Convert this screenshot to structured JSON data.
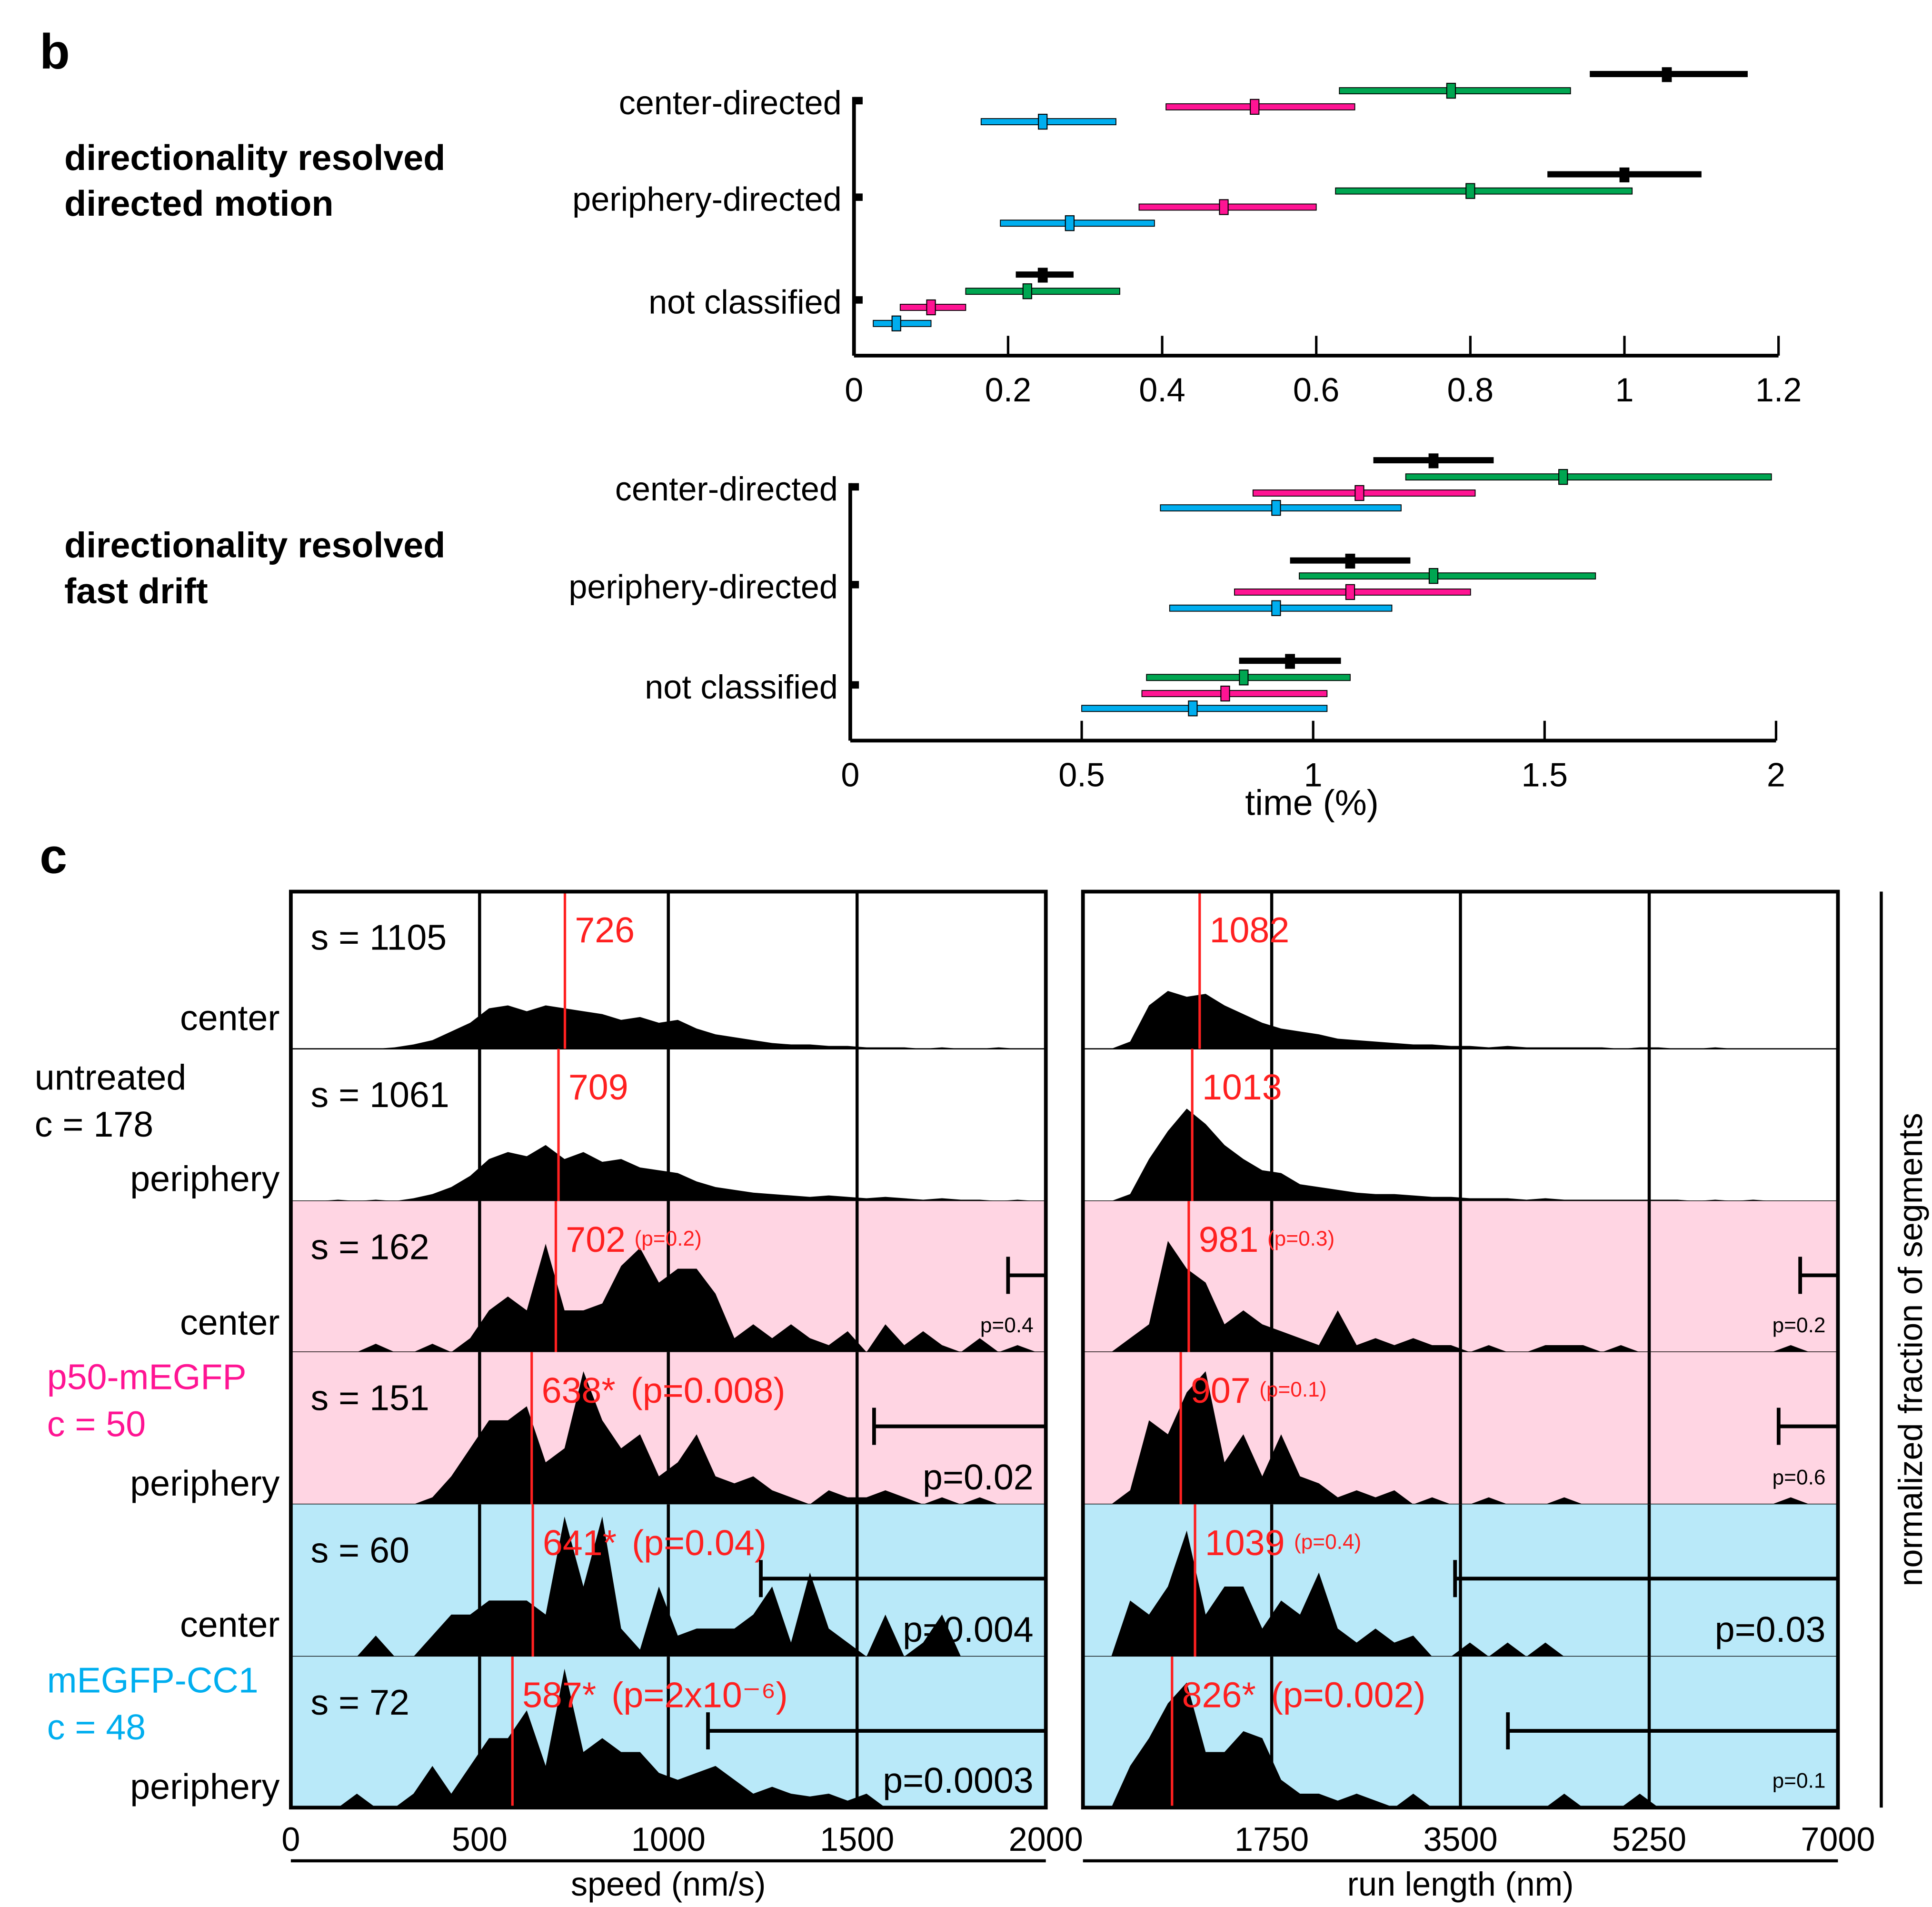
{
  "colors": {
    "untreated": "#000000",
    "p50": "#ff1493",
    "cc1": "#00aeef",
    "green": "#00a651",
    "red": "#ff2020",
    "pink_bg": "#ffd5e3",
    "cyan_bg": "#b9e9f9"
  },
  "panel_b": {
    "letter": "b",
    "group_names": [
      "untreated",
      "p50-mEGFP",
      "mEGFP-CC1 (green)",
      "mEGFP-CC1"
    ],
    "chart_data": [
      {
        "type": "scatter",
        "title": [
          "directionality resolved",
          "directed motion"
        ],
        "xlabel": "",
        "xlim": [
          0,
          1.2
        ],
        "xticks": [
          "0",
          "0.2",
          "0.4",
          "0.6",
          "0.8",
          "1",
          "1.2"
        ],
        "xtick_values": [
          0,
          0.2,
          0.4,
          0.6,
          0.8,
          1,
          1.2
        ],
        "categories": [
          "center-directed",
          "periphery-directed",
          "not classified"
        ],
        "series_colors": [
          "black",
          "green",
          "magenta",
          "blue"
        ],
        "points": [
          [
            [
              1.055,
              0.955,
              1.16
            ],
            [
              0.775,
              0.63,
              0.93
            ],
            [
              0.52,
              0.405,
              0.65
            ],
            [
              0.245,
              0.165,
              0.34
            ]
          ],
          [
            [
              1.0,
              0.9,
              1.1
            ],
            [
              0.8,
              0.625,
              1.01
            ],
            [
              0.48,
              0.37,
              0.6
            ],
            [
              0.28,
              0.19,
              0.39
            ]
          ],
          [
            [
              0.245,
              0.21,
              0.285
            ],
            [
              0.225,
              0.145,
              0.345
            ],
            [
              0.1,
              0.06,
              0.145
            ],
            [
              0.055,
              0.025,
              0.1
            ]
          ]
        ]
      },
      {
        "type": "scatter",
        "title": [
          "directionality resolved",
          "fast drift"
        ],
        "xlabel": "time (%)",
        "xlim": [
          0,
          2
        ],
        "xticks": [
          "0",
          "0.5",
          "1",
          "1.5",
          "2"
        ],
        "xtick_values": [
          0,
          0.5,
          1,
          1.5,
          2
        ],
        "categories": [
          "center-directed",
          "periphery-directed",
          "not classified"
        ],
        "series_colors": [
          "black",
          "green",
          "magenta",
          "blue"
        ],
        "points": [
          [
            [
              1.26,
              1.13,
              1.39
            ],
            [
              1.54,
              1.2,
              1.99
            ],
            [
              1.1,
              0.87,
              1.35
            ],
            [
              0.92,
              0.67,
              1.19
            ]
          ],
          [
            [
              1.08,
              0.95,
              1.21
            ],
            [
              1.26,
              0.97,
              1.61
            ],
            [
              1.08,
              0.83,
              1.34
            ],
            [
              0.92,
              0.69,
              1.17
            ]
          ],
          [
            [
              0.95,
              0.84,
              1.06
            ],
            [
              0.85,
              0.64,
              1.08
            ],
            [
              0.81,
              0.63,
              1.03
            ],
            [
              0.74,
              0.5,
              1.03
            ]
          ]
        ]
      }
    ]
  },
  "panel_c": {
    "letter": "c",
    "ylabel": "normalized fraction of segments",
    "groups": [
      {
        "name": "untreated",
        "count": "c = 178",
        "color": "untreated"
      },
      {
        "name": "p50-mEGFP",
        "count": "c = 50",
        "color": "p50"
      },
      {
        "name": "mEGFP-CC1",
        "count": "c = 48",
        "color": "cc1"
      }
    ],
    "row_labels": [
      "center",
      "periphery",
      "center",
      "periphery",
      "center",
      "periphery"
    ],
    "chart_data": [
      {
        "type": "area",
        "xlabel": "speed (nm/s)",
        "xlim": [
          0,
          2000
        ],
        "xticks": [
          "0",
          "500",
          "1000",
          "1500",
          "2000"
        ],
        "xtick_values": [
          0,
          500,
          1000,
          1500,
          2000
        ],
        "bin_width": 50,
        "rows": [
          {
            "s": "s = 1105",
            "median": 726,
            "median_label": "726",
            "p_label": "",
            "bracket_start": null,
            "bracket_p": "",
            "hist": [
              0,
              0,
              0,
              0,
              0,
              0.01,
              0.03,
              0.06,
              0.12,
              0.18,
              0.28,
              0.3,
              0.26,
              0.3,
              0.28,
              0.26,
              0.24,
              0.2,
              0.22,
              0.18,
              0.2,
              0.14,
              0.1,
              0.08,
              0.06,
              0.04,
              0.03,
              0.03,
              0.02,
              0.02,
              0.01,
              0.01,
              0.01,
              0,
              0.01,
              0,
              0,
              0.01,
              0,
              0
            ]
          },
          {
            "s": "s = 1061",
            "median": 709,
            "median_label": "709",
            "p_label": "",
            "bracket_start": null,
            "bracket_p": "",
            "hist": [
              0,
              0,
              0.01,
              0,
              0.01,
              0,
              0.02,
              0.05,
              0.1,
              0.18,
              0.3,
              0.35,
              0.32,
              0.4,
              0.3,
              0.35,
              0.28,
              0.3,
              0.24,
              0.22,
              0.2,
              0.14,
              0.1,
              0.08,
              0.06,
              0.05,
              0.04,
              0.03,
              0.04,
              0.03,
              0.02,
              0.03,
              0.02,
              0.01,
              0.02,
              0.01,
              0.01,
              0,
              0.01,
              0
            ]
          },
          {
            "s": "s = 162",
            "median": 702,
            "median_label": "702",
            "p_label": "(p=0.2)",
            "bracket_start": 1900,
            "bracket_p": "p=0.4",
            "hist": [
              0,
              0,
              0,
              0,
              0.06,
              0,
              0,
              0.06,
              0,
              0.1,
              0.3,
              0.4,
              0.3,
              0.78,
              0.3,
              0.3,
              0.35,
              0.62,
              0.75,
              0.5,
              0.6,
              0.6,
              0.42,
              0.1,
              0.2,
              0.1,
              0.2,
              0.1,
              0.05,
              0.15,
              0,
              0.2,
              0.05,
              0.15,
              0.05,
              0,
              0.1,
              0,
              0.05,
              0
            ]
          },
          {
            "s": "s = 151",
            "median": 638,
            "median_label": "638*",
            "p_label": "(p=0.008)",
            "bracket_start": 1545,
            "bracket_p": "p=0.02",
            "hist": [
              0,
              0,
              0,
              0,
              0,
              0,
              0,
              0.05,
              0.2,
              0.4,
              0.6,
              0.6,
              0.7,
              0.3,
              0.4,
              0.95,
              0.6,
              0.4,
              0.5,
              0.2,
              0.3,
              0.5,
              0.2,
              0.15,
              0.2,
              0.1,
              0.05,
              0,
              0.1,
              0.05,
              0.05,
              0.1,
              0.05,
              0,
              0.05,
              0,
              0.05,
              0,
              0,
              0
            ]
          },
          {
            "s": "s = 60",
            "median": 641,
            "median_label": "641*",
            "p_label": "(p=0.04)",
            "bracket_start": 1245,
            "bracket_p": "p=0.004",
            "hist": [
              0,
              0,
              0,
              0,
              0.15,
              0,
              0,
              0.15,
              0.3,
              0.3,
              0.4,
              0.4,
              0.4,
              0.3,
              1.0,
              0.5,
              1.0,
              0.2,
              0.05,
              0.5,
              0.15,
              0.2,
              0.2,
              0.2,
              0.3,
              0.5,
              0.1,
              0.6,
              0.2,
              0.1,
              0,
              0.3,
              0,
              0.1,
              0.3,
              0,
              0,
              0,
              0,
              0
            ]
          },
          {
            "s": "s = 72",
            "median": 587,
            "median_label": "587*",
            "p_label": "(p=2x10⁻⁶)",
            "bracket_start": 1105,
            "bracket_p": "p=0.0003",
            "hist": [
              0,
              0,
              0,
              0.1,
              0,
              0,
              0.1,
              0.3,
              0.1,
              0.3,
              0.5,
              0.5,
              0.7,
              0.3,
              1.0,
              0.4,
              0.5,
              0.4,
              0.4,
              0.25,
              0.2,
              0.25,
              0.3,
              0.2,
              0.1,
              0.15,
              0.1,
              0.08,
              0.1,
              0.05,
              0.1,
              0,
              0,
              0,
              0,
              0,
              0,
              0,
              0,
              0
            ]
          }
        ]
      },
      {
        "type": "area",
        "xlabel": "run length (nm)",
        "xlim": [
          0,
          7000
        ],
        "xticks": [
          "1750",
          "3500",
          "5250",
          "7000"
        ],
        "xtick_values": [
          1750,
          3500,
          5250,
          7000
        ],
        "bin_width": 175,
        "rows": [
          {
            "s": "",
            "median": 1082,
            "median_label": "1082",
            "p_label": "",
            "bracket_start": null,
            "bracket_p": "",
            "hist": [
              0,
              0,
              0.05,
              0.3,
              0.4,
              0.36,
              0.38,
              0.3,
              0.24,
              0.18,
              0.14,
              0.12,
              0.1,
              0.07,
              0.06,
              0.05,
              0.04,
              0.03,
              0.03,
              0.02,
              0.02,
              0.01,
              0.02,
              0.01,
              0.01,
              0.01,
              0.01,
              0.01,
              0,
              0.01,
              0.01,
              0,
              0,
              0.01,
              0,
              0,
              0,
              0,
              0,
              0
            ]
          },
          {
            "s": "",
            "median": 1013,
            "median_label": "1013",
            "p_label": "",
            "bracket_start": null,
            "bracket_p": "",
            "hist": [
              0,
              0,
              0.05,
              0.3,
              0.5,
              0.66,
              0.55,
              0.4,
              0.3,
              0.22,
              0.2,
              0.12,
              0.1,
              0.08,
              0.06,
              0.05,
              0.05,
              0.04,
              0.03,
              0.03,
              0.02,
              0.02,
              0.02,
              0.01,
              0.02,
              0.01,
              0.01,
              0.01,
              0.01,
              0.01,
              0.01,
              0.01,
              0,
              0.01,
              0,
              0.01,
              0,
              0,
              0,
              0
            ]
          },
          {
            "s": "",
            "median": 981,
            "median_label": "981",
            "p_label": "(p=0.3)",
            "bracket_start": 6650,
            "bracket_p": "p=0.2",
            "hist": [
              0,
              0,
              0.1,
              0.2,
              0.8,
              0.6,
              0.5,
              0.2,
              0.3,
              0.2,
              0.15,
              0.1,
              0.05,
              0.3,
              0.05,
              0.1,
              0.05,
              0.1,
              0.05,
              0.05,
              0,
              0.05,
              0,
              0,
              0.05,
              0.05,
              0.05,
              0,
              0.05,
              0,
              0,
              0,
              0,
              0,
              0,
              0,
              0,
              0.05,
              0,
              0
            ]
          },
          {
            "s": "",
            "median": 907,
            "median_label": "907",
            "p_label": "(p=0.1)",
            "bracket_start": 6450,
            "bracket_p": "p=0.6",
            "hist": [
              0,
              0,
              0.1,
              0.6,
              0.5,
              0.8,
              0.95,
              0.3,
              0.5,
              0.2,
              0.5,
              0.2,
              0.15,
              0.05,
              0.1,
              0.05,
              0.1,
              0,
              0.05,
              0,
              0,
              0.05,
              0,
              0,
              0,
              0.05,
              0,
              0,
              0,
              0,
              0,
              0,
              0,
              0,
              0,
              0,
              0,
              0.05,
              0,
              0
            ]
          },
          {
            "s": "",
            "median": 1039,
            "median_label": "1039",
            "p_label": "(p=0.4)",
            "bracket_start": 3450,
            "bracket_p": "p=0.03",
            "hist": [
              0,
              0,
              0.4,
              0.3,
              0.5,
              0.9,
              0.3,
              0.5,
              0.5,
              0.2,
              0.4,
              0.3,
              0.6,
              0.2,
              0.1,
              0.2,
              0.1,
              0.15,
              0,
              0,
              0.1,
              0,
              0.1,
              0,
              0.1,
              0,
              0,
              0,
              0,
              0,
              0,
              0,
              0,
              0,
              0,
              0,
              0,
              0,
              0,
              0
            ]
          },
          {
            "s": "",
            "median": 826,
            "median_label": "826*",
            "p_label": "(p=0.002)",
            "bracket_start": 3940,
            "bracket_p": "p=0.1",
            "hist": [
              0,
              0,
              0.3,
              0.5,
              0.75,
              0.9,
              0.4,
              0.4,
              0.55,
              0.5,
              0.2,
              0.1,
              0.1,
              0.05,
              0.1,
              0.05,
              0,
              0.1,
              0,
              0,
              0,
              0,
              0,
              0,
              0,
              0.1,
              0,
              0,
              0,
              0.1,
              0,
              0,
              0,
              0,
              0,
              0,
              0,
              0,
              0,
              0
            ]
          }
        ]
      }
    ]
  }
}
